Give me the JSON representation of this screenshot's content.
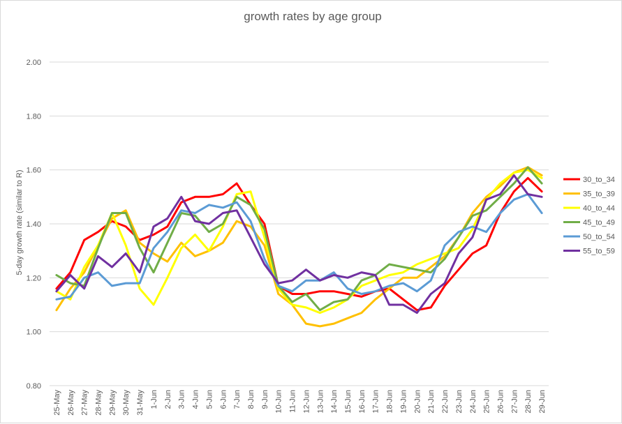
{
  "chart_data": {
    "type": "line",
    "title": "growth rates by age group",
    "xlabel": "",
    "ylabel": "5-day growth rate (similar to R)",
    "ylim": [
      0.8,
      2.0
    ],
    "y_ticks": [
      "0.80",
      "1.00",
      "1.20",
      "1.40",
      "1.60",
      "1.80",
      "2.00"
    ],
    "grid": "horizontal",
    "legend_position": "right",
    "categories": [
      "25-May",
      "26-May",
      "27-May",
      "28-May",
      "29-May",
      "30-May",
      "31-May",
      "1-Jun",
      "2-Jun",
      "3-Jun",
      "4-Jun",
      "5-Jun",
      "6-Jun",
      "7-Jun",
      "8-Jun",
      "9-Jun",
      "10-Jun",
      "11-Jun",
      "12-Jun",
      "13-Jun",
      "14-Jun",
      "15-Jun",
      "16-Jun",
      "17-Jun",
      "18-Jun",
      "19-Jun",
      "20-Jun",
      "21-Jun",
      "22-Jun",
      "23-Jun",
      "24-Jun",
      "25-Jun",
      "26-Jun",
      "27-Jun",
      "28-Jun",
      "29-Jun"
    ],
    "series": [
      {
        "name": "30_to_34",
        "color": "#ff0000",
        "values": [
          1.16,
          1.22,
          1.34,
          1.37,
          1.41,
          1.39,
          1.34,
          1.36,
          1.39,
          1.48,
          1.5,
          1.5,
          1.51,
          1.55,
          1.47,
          1.4,
          1.17,
          1.14,
          1.14,
          1.15,
          1.15,
          1.14,
          1.13,
          1.15,
          1.16,
          1.12,
          1.08,
          1.09,
          1.17,
          1.23,
          1.29,
          1.32,
          1.44,
          1.52,
          1.57,
          1.52
        ]
      },
      {
        "name": "35_to_39",
        "color": "#ffc000",
        "values": [
          1.08,
          1.16,
          1.22,
          1.32,
          1.42,
          1.45,
          1.33,
          1.29,
          1.26,
          1.33,
          1.28,
          1.3,
          1.33,
          1.41,
          1.39,
          1.32,
          1.14,
          1.1,
          1.03,
          1.02,
          1.03,
          1.05,
          1.07,
          1.12,
          1.16,
          1.2,
          1.2,
          1.24,
          1.28,
          1.35,
          1.44,
          1.5,
          1.54,
          1.59,
          1.61,
          1.58
        ]
      },
      {
        "name": "40_to_44",
        "color": "#ffff00",
        "values": [
          1.15,
          1.12,
          1.24,
          1.32,
          1.44,
          1.32,
          1.16,
          1.1,
          1.2,
          1.31,
          1.36,
          1.3,
          1.39,
          1.51,
          1.52,
          1.35,
          1.16,
          1.1,
          1.09,
          1.07,
          1.09,
          1.12,
          1.17,
          1.19,
          1.21,
          1.22,
          1.25,
          1.27,
          1.29,
          1.31,
          1.38,
          1.49,
          1.55,
          1.59,
          1.6,
          1.57
        ]
      },
      {
        "name": "45_to_49",
        "color": "#70ad47",
        "values": [
          1.21,
          1.18,
          1.17,
          1.31,
          1.44,
          1.44,
          1.31,
          1.22,
          1.33,
          1.44,
          1.43,
          1.37,
          1.4,
          1.5,
          1.47,
          1.38,
          1.17,
          1.11,
          1.14,
          1.08,
          1.11,
          1.12,
          1.19,
          1.21,
          1.25,
          1.24,
          1.23,
          1.22,
          1.27,
          1.35,
          1.43,
          1.45,
          1.5,
          1.55,
          1.61,
          1.55
        ]
      },
      {
        "name": "50_to_54",
        "color": "#5b9bd5",
        "values": [
          1.12,
          1.13,
          1.2,
          1.22,
          1.17,
          1.18,
          1.18,
          1.31,
          1.37,
          1.45,
          1.44,
          1.47,
          1.46,
          1.48,
          1.41,
          1.27,
          1.17,
          1.15,
          1.19,
          1.19,
          1.22,
          1.16,
          1.14,
          1.15,
          1.17,
          1.18,
          1.15,
          1.19,
          1.32,
          1.37,
          1.39,
          1.37,
          1.44,
          1.49,
          1.51,
          1.44
        ]
      },
      {
        "name": "55_to_59",
        "color": "#7030a0",
        "values": [
          1.15,
          1.21,
          1.16,
          1.28,
          1.24,
          1.29,
          1.22,
          1.39,
          1.42,
          1.5,
          1.41,
          1.4,
          1.44,
          1.45,
          1.35,
          1.25,
          1.18,
          1.19,
          1.23,
          1.19,
          1.21,
          1.2,
          1.22,
          1.21,
          1.1,
          1.1,
          1.07,
          1.14,
          1.18,
          1.29,
          1.35,
          1.49,
          1.51,
          1.58,
          1.51,
          1.5
        ]
      }
    ]
  }
}
